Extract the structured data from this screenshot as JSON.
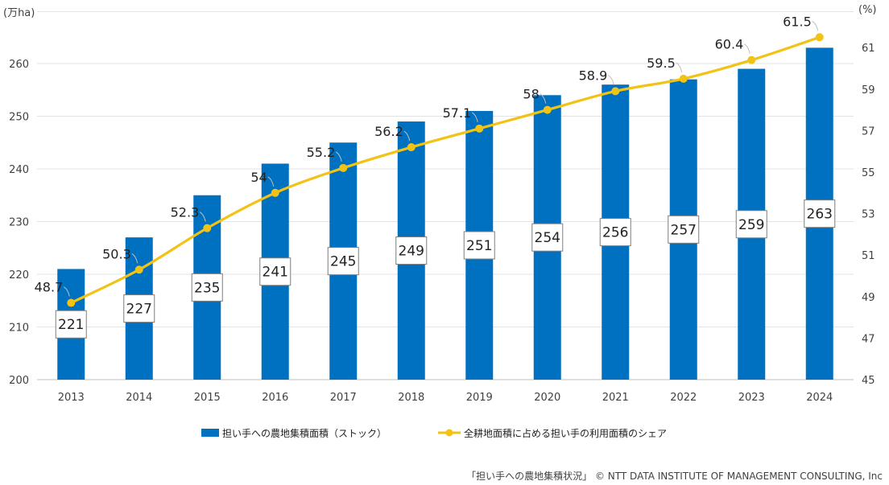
{
  "chart_data": {
    "type": "bar+line",
    "categories": [
      "2013",
      "2014",
      "2015",
      "2016",
      "2017",
      "2018",
      "2019",
      "2020",
      "2021",
      "2022",
      "2023",
      "2024"
    ],
    "series": [
      {
        "name": "担い手への農地集積面積（ストック）",
        "type": "bar",
        "axis": "left",
        "color": "#0070C0",
        "values": [
          221,
          227,
          235,
          241,
          245,
          249,
          251,
          254,
          256,
          257,
          259,
          263
        ],
        "labels": [
          "221",
          "227",
          "235",
          "241",
          "245",
          "249",
          "251",
          "254",
          "256",
          "257",
          "259",
          "263"
        ]
      },
      {
        "name": "全耕地面積に占める担い手の利用面積のシェア",
        "type": "line",
        "axis": "right",
        "color": "#F2C314",
        "values": [
          48.7,
          50.3,
          52.3,
          54,
          55.2,
          56.2,
          57.1,
          58,
          58.9,
          59.5,
          60.4,
          61.5
        ],
        "labels": [
          "48.7",
          "50.3",
          "52.3",
          "54",
          "55.2",
          "56.2",
          "57.1",
          "58",
          "58.9",
          "59.5",
          "60.4",
          "61.5"
        ]
      }
    ],
    "y_left": {
      "label": "(万ha)",
      "range": [
        200,
        270
      ],
      "ticks": [
        200,
        210,
        220,
        230,
        240,
        250,
        260
      ],
      "tick_labels": [
        "200",
        "210",
        "220",
        "230",
        "240",
        "250",
        "260"
      ]
    },
    "y_right": {
      "label": "(%)",
      "range": [
        45,
        63
      ],
      "ticks": [
        45,
        47,
        49,
        51,
        53,
        55,
        57,
        59,
        61
      ],
      "tick_labels": [
        "45",
        "47",
        "49",
        "51",
        "53",
        "55",
        "57",
        "59",
        "61"
      ]
    },
    "grid": true,
    "legend_position": "bottom",
    "source": "「担い手への農地集積状況」 © NTT DATA INSTITUTE OF MANAGEMENT CONSULTING, Inc"
  }
}
